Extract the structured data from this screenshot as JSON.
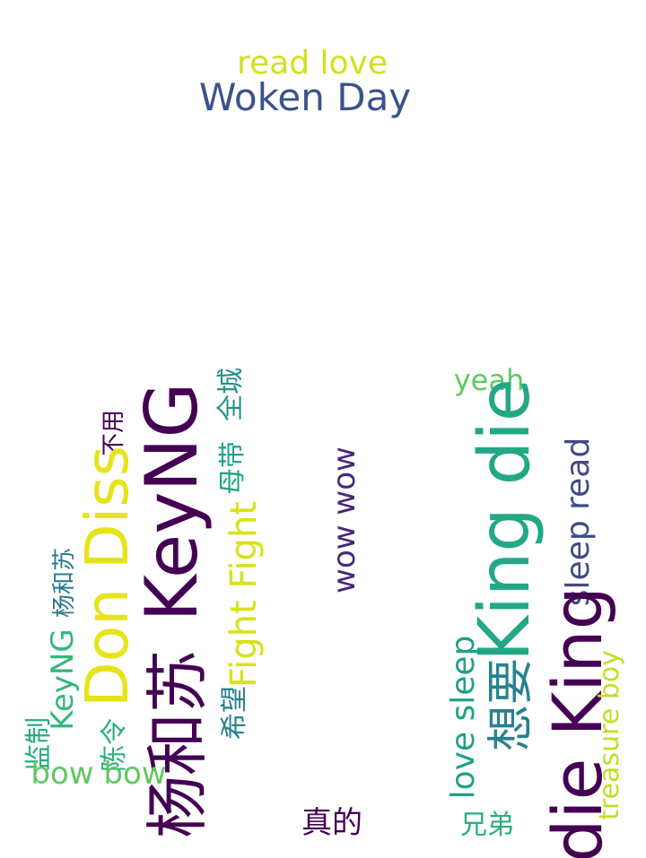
{
  "words": [
    {
      "text": "read love",
      "color": "#d2e21b"
    },
    {
      "text": "Woken Day",
      "color": "#3b528b"
    },
    {
      "text": "yeah",
      "color": "#5ec962"
    },
    {
      "text": "不用",
      "color": "#440154"
    },
    {
      "text": "全城",
      "color": "#21918c"
    },
    {
      "text": "母带",
      "color": "#1fa187"
    },
    {
      "text": "KeyNG",
      "color": "#440154"
    },
    {
      "text": "Don Diss",
      "color": "#e5e419"
    },
    {
      "text": "Fight Fight",
      "color": "#d8e219"
    },
    {
      "text": "wow wow",
      "color": "#482878"
    },
    {
      "text": "King die",
      "color": "#22a884"
    },
    {
      "text": "sleep read",
      "color": "#3e4a89"
    },
    {
      "text": "杨和苏",
      "color": "#2a788e"
    },
    {
      "text": "KeyNG",
      "color": "#35b779"
    },
    {
      "text": "杨和苏",
      "color": "#440154"
    },
    {
      "text": "希望",
      "color": "#277f8e"
    },
    {
      "text": "监制",
      "color": "#25ab82"
    },
    {
      "text": "陈令",
      "color": "#2db27d"
    },
    {
      "text": "bow bow",
      "color": "#5ec962"
    },
    {
      "text": "真的",
      "color": "#440154"
    },
    {
      "text": "想要",
      "color": "#26828e"
    },
    {
      "text": "love sleep",
      "color": "#1fa187"
    },
    {
      "text": "die King",
      "color": "#440154"
    },
    {
      "text": "treasure boy",
      "color": "#c0df25"
    },
    {
      "text": "兄弟",
      "color": "#29af7f"
    }
  ]
}
